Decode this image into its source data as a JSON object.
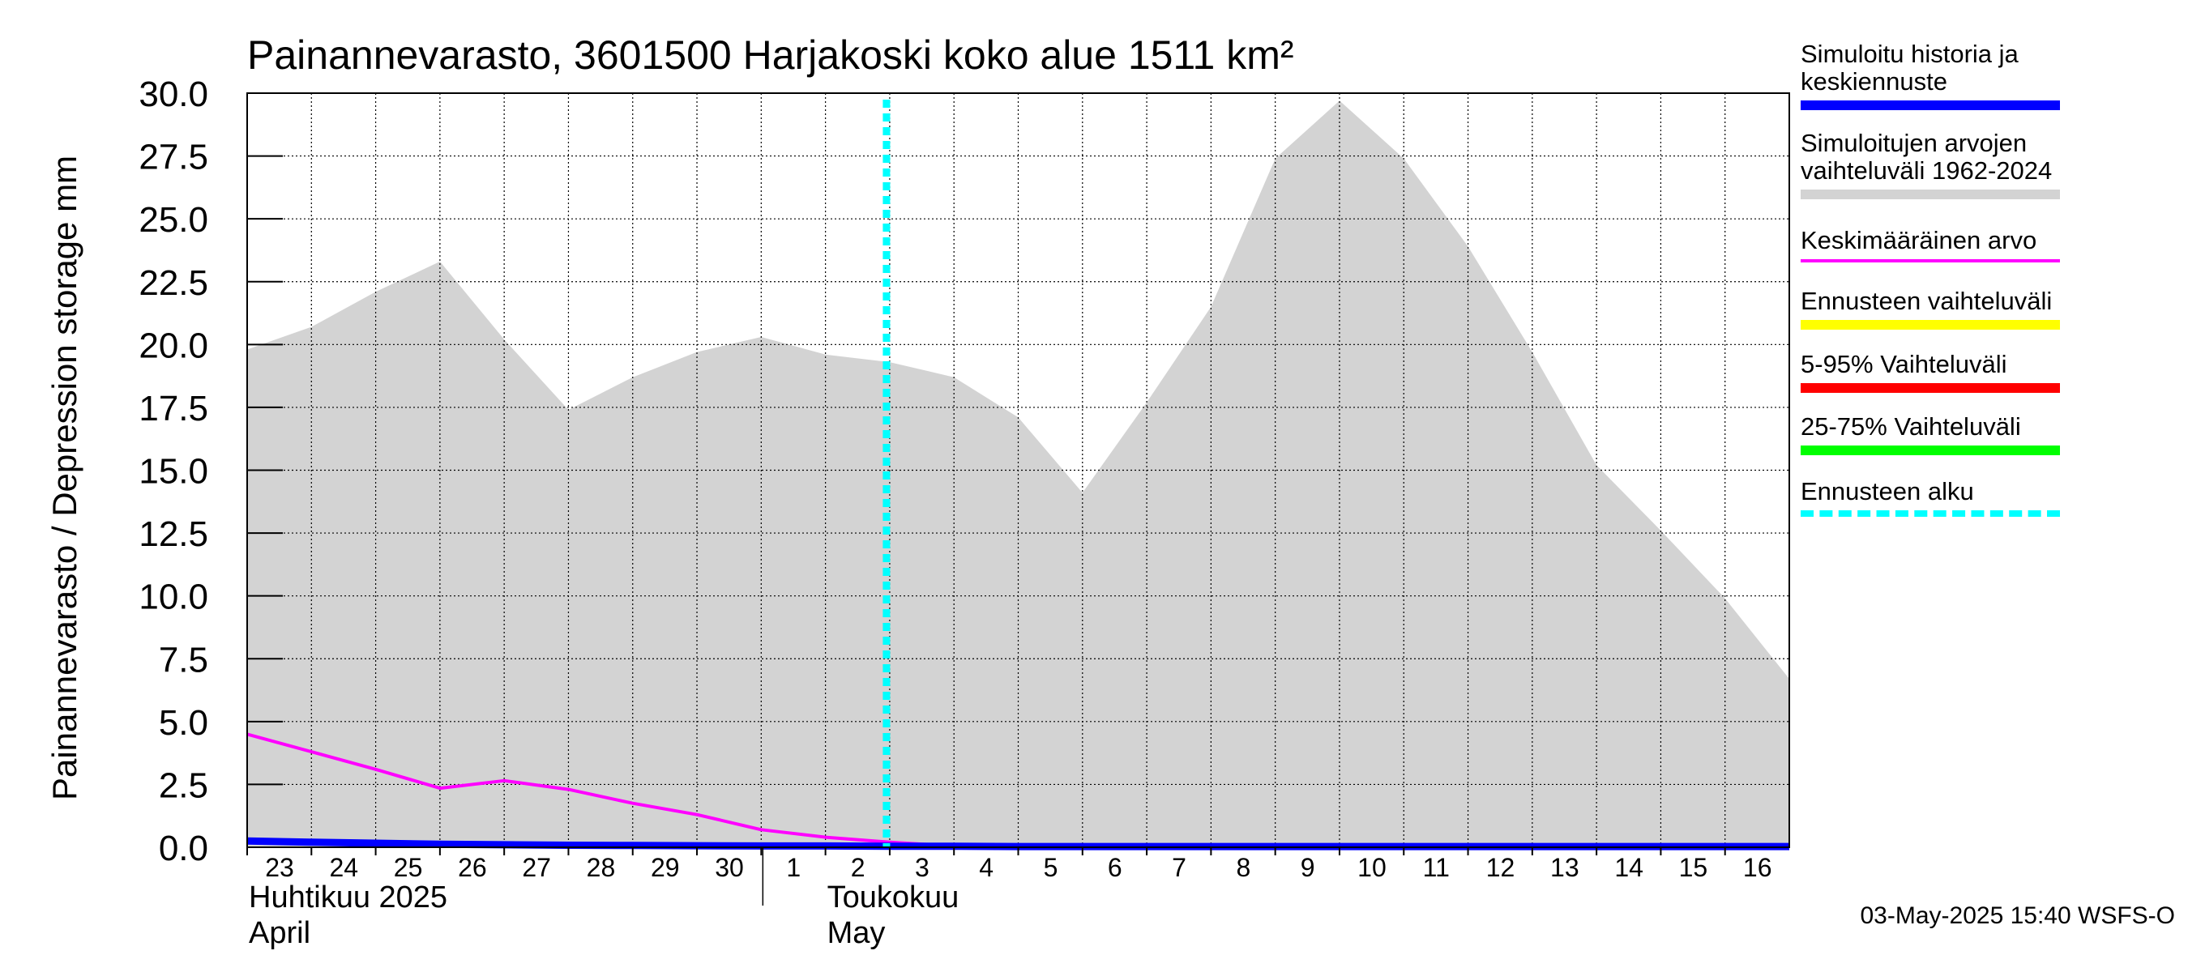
{
  "chart_data": {
    "type": "area",
    "title": "Painannevarasto, 3601500 Harjakoski koko alue 1511 km²",
    "ylabel": "Painannevarasto / Depression storage    mm",
    "ylim": [
      0,
      30
    ],
    "yticks": [
      "0.0",
      "2.5",
      "5.0",
      "7.5",
      "10.0",
      "12.5",
      "15.0",
      "17.5",
      "20.0",
      "22.5",
      "25.0",
      "27.5",
      "30.0"
    ],
    "x_day_labels": [
      "23",
      "24",
      "25",
      "26",
      "27",
      "28",
      "29",
      "30",
      "1",
      "2",
      "3",
      "4",
      "5",
      "6",
      "7",
      "8",
      "9",
      "10",
      "11",
      "12",
      "13",
      "14",
      "15",
      "16"
    ],
    "month_labels": [
      {
        "line1": "Huhtikuu  2025",
        "line2": "April",
        "at_day_index": 0
      },
      {
        "line1": "Toukokuu",
        "line2": "May",
        "at_day_index": 9
      }
    ],
    "x_range": [
      0,
      24
    ],
    "month_boundary_day_index": 8,
    "forecast_start_day_index": 10,
    "series": [
      {
        "name": "Simuloitujen arvojen vaihteluväli 1962-2024",
        "kind": "band",
        "color": "#d3d3d3",
        "x": [
          0,
          1,
          2,
          3,
          4,
          5,
          6,
          7,
          8,
          9,
          10,
          11,
          12,
          13,
          14,
          15,
          16,
          17,
          18,
          19,
          20,
          21,
          22,
          23,
          24
        ],
        "upper": [
          19.8,
          20.7,
          22.1,
          23.3,
          20.2,
          17.4,
          18.7,
          19.7,
          20.3,
          19.6,
          19.3,
          18.7,
          17.1,
          14.1,
          17.7,
          21.5,
          27.4,
          29.7,
          27.4,
          23.9,
          19.7,
          15.2,
          12.6,
          9.9,
          6.7
        ],
        "lower": [
          0,
          0,
          0,
          0,
          0,
          0,
          0,
          0,
          0,
          0,
          0,
          0,
          0,
          0,
          0,
          0,
          0,
          0,
          0,
          0,
          0,
          0,
          0,
          0,
          0
        ]
      },
      {
        "name": "Keskimääräinen arvo",
        "kind": "line",
        "color": "#ff00ff",
        "x": [
          0,
          1,
          2,
          3,
          4,
          5,
          6,
          7,
          8,
          9,
          10,
          11,
          12,
          13,
          14,
          15,
          16,
          17,
          18,
          19,
          20,
          21,
          22,
          23,
          24
        ],
        "values": [
          4.5,
          3.8,
          3.1,
          2.35,
          2.65,
          2.3,
          1.75,
          1.3,
          0.7,
          0.4,
          0.2,
          0.05,
          0,
          0,
          0,
          0,
          0,
          0,
          0,
          0,
          0,
          0,
          0,
          0,
          0
        ]
      },
      {
        "name": "Simuloitu historia ja keskiennuste",
        "kind": "line",
        "color": "#0000ff",
        "x": [
          0,
          1,
          2,
          3,
          4,
          5,
          6,
          7,
          8,
          9,
          10,
          11,
          12,
          13,
          14,
          15,
          16,
          17,
          18,
          19,
          20,
          21,
          22,
          23,
          24
        ],
        "values": [
          0.25,
          0.2,
          0.16,
          0.12,
          0.1,
          0.08,
          0.07,
          0.06,
          0.05,
          0.05,
          0.04,
          0.04,
          0.03,
          0.03,
          0.03,
          0.03,
          0.03,
          0.03,
          0.03,
          0.03,
          0.03,
          0.03,
          0.03,
          0.03,
          0.03
        ]
      }
    ]
  },
  "legend": [
    {
      "label": "Simuloitu historia ja\nkeskiennuste",
      "color": "#0000ff",
      "style": "thick"
    },
    {
      "label": "Simuloitujen arvojen\nvaihteluväli 1962-2024",
      "color": "#d3d3d3",
      "style": "thick"
    },
    {
      "label": "Keskimääräinen arvo",
      "color": "#ff00ff",
      "style": "thin"
    },
    {
      "label": "Ennusteen vaihteluväli",
      "color": "#ffff00",
      "style": "thick"
    },
    {
      "label": "5-95% Vaihteluväli",
      "color": "#ff0000",
      "style": "thick"
    },
    {
      "label": "25-75% Vaihteluväli",
      "color": "#00ff00",
      "style": "thick"
    },
    {
      "label": "Ennusteen alku",
      "color": "#00ffff",
      "style": "dotted"
    }
  ],
  "footer": "03-May-2025 15:40 WSFS-O"
}
